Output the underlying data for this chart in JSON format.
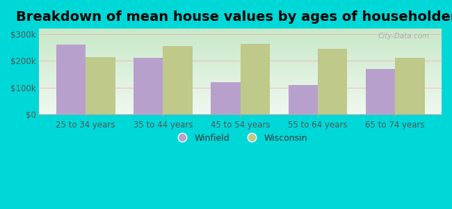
{
  "title": "Breakdown of mean house values by ages of householders",
  "categories": [
    "25 to 34 years",
    "35 to 44 years",
    "45 to 54 years",
    "55 to 64 years",
    "65 to 74 years"
  ],
  "winfield_values": [
    260000,
    210000,
    120000,
    110000,
    170000
  ],
  "wisconsin_values": [
    215000,
    255000,
    262000,
    245000,
    210000
  ],
  "winfield_color": "#b8a0cc",
  "wisconsin_color": "#bec98a",
  "background_top": "#c8e8c8",
  "background_bottom": "#f0f8f0",
  "outer_background": "#00d8d8",
  "grid_color": "#e0ece0",
  "ylim": [
    0,
    320000
  ],
  "yticks": [
    0,
    100000,
    200000,
    300000
  ],
  "ytick_labels": [
    "$0",
    "$100k",
    "$200k",
    "$300k"
  ],
  "legend_winfield": "Winfield",
  "legend_wisconsin": "Wisconsin",
  "title_fontsize": 14,
  "bar_width": 0.38,
  "figsize": [
    6.5,
    3.0
  ],
  "dpi": 100
}
